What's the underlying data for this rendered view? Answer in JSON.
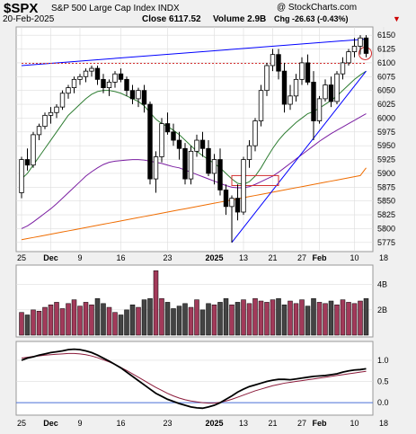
{
  "header": {
    "symbol": "$SPX",
    "name": "S&P 500 Large Cap Index  INDX",
    "watermark": "@ StockCharts.com",
    "date": "20-Feb-2025",
    "close": "Close 6117.52",
    "volume": "Volume 2.9B",
    "chg": "Chg -26.63 (-0.43%)",
    "chg_arrow": "▼",
    "chg_color": "#cc0000"
  },
  "price_axis": [
    "6150",
    "6125",
    "6100",
    "6075",
    "6050",
    "6025",
    "6000",
    "5975",
    "5950",
    "5925",
    "5900",
    "5875",
    "5850",
    "5825",
    "5800",
    "5775"
  ],
  "volume_axis": [
    "4B",
    "2B"
  ],
  "macd_axis": [
    "1.0",
    "0.5",
    "0.0"
  ],
  "x_axis": [
    "25",
    "Dec",
    "9",
    "16",
    "23",
    "2025",
    "13",
    "21",
    "27",
    "Feb",
    "10",
    "18"
  ],
  "colors": {
    "up_candle": "#ffffff",
    "down_candle": "#000000",
    "ma_short": "#2e7d32",
    "ma_mid": "#7b1fa2",
    "ma_long": "#ef6c00",
    "trendline": "#0000ff",
    "resistance": "#d32f2f",
    "volume_up": "#a23a5a",
    "volume_down": "#444444",
    "macd": "#000000",
    "macd_signal": "#8b1a3a"
  },
  "chart_data": {
    "type": "candlestick",
    "title": "$SPX S&P 500 Large Cap Index INDX",
    "ylim": [
      5765,
      6160
    ],
    "candles": [
      [
        5865,
        5930,
        5855,
        5925
      ],
      [
        5925,
        5945,
        5905,
        5915
      ],
      [
        5915,
        5975,
        5910,
        5970
      ],
      [
        5970,
        5990,
        5960,
        5985
      ],
      [
        5985,
        6010,
        5980,
        6005
      ],
      [
        6005,
        6020,
        5990,
        6010
      ],
      [
        6010,
        6025,
        6000,
        6020
      ],
      [
        6020,
        6050,
        6015,
        6045
      ],
      [
        6045,
        6060,
        6035,
        6055
      ],
      [
        6055,
        6075,
        6045,
        6070
      ],
      [
        6070,
        6080,
        6060,
        6075
      ],
      [
        6075,
        6090,
        6065,
        6085
      ],
      [
        6085,
        6095,
        6075,
        6090
      ],
      [
        6090,
        6095,
        6060,
        6070
      ],
      [
        6070,
        6080,
        6045,
        6055
      ],
      [
        6055,
        6070,
        6040,
        6065
      ],
      [
        6065,
        6085,
        6055,
        6080
      ],
      [
        6080,
        6090,
        6065,
        6070
      ],
      [
        6070,
        6075,
        6040,
        6050
      ],
      [
        6050,
        6060,
        6025,
        6035
      ],
      [
        6035,
        6055,
        6020,
        6050
      ],
      [
        6050,
        6060,
        6010,
        6025
      ],
      [
        6025,
        6030,
        5880,
        5890
      ],
      [
        5890,
        5940,
        5865,
        5930
      ],
      [
        5930,
        6000,
        5920,
        5990
      ],
      [
        5990,
        6010,
        5970,
        5975
      ],
      [
        5975,
        5990,
        5950,
        5960
      ],
      [
        5960,
        5975,
        5925,
        5945
      ],
      [
        5945,
        5955,
        5880,
        5890
      ],
      [
        5890,
        5950,
        5880,
        5940
      ],
      [
        5940,
        5970,
        5930,
        5960
      ],
      [
        5960,
        5975,
        5930,
        5945
      ],
      [
        5945,
        5960,
        5895,
        5900
      ],
      [
        5900,
        5935,
        5880,
        5925
      ],
      [
        5925,
        5945,
        5860,
        5870
      ],
      [
        5870,
        5880,
        5825,
        5840
      ],
      [
        5840,
        5860,
        5775,
        5855
      ],
      [
        5855,
        5880,
        5815,
        5830
      ],
      [
        5830,
        5930,
        5825,
        5925
      ],
      [
        5925,
        5960,
        5910,
        5950
      ],
      [
        5950,
        6000,
        5940,
        5995
      ],
      [
        5995,
        6060,
        5985,
        6050
      ],
      [
        6050,
        6100,
        6040,
        6095
      ],
      [
        6095,
        6125,
        6085,
        6115
      ],
      [
        6115,
        6125,
        6070,
        6085
      ],
      [
        6085,
        6100,
        6010,
        6025
      ],
      [
        6025,
        6060,
        6015,
        6040
      ],
      [
        6040,
        6080,
        6030,
        6070
      ],
      [
        6070,
        6110,
        6060,
        6100
      ],
      [
        6100,
        6115,
        6060,
        6065
      ],
      [
        6065,
        6085,
        5960,
        5995
      ],
      [
        5995,
        6040,
        5990,
        6035
      ],
      [
        6035,
        6070,
        6030,
        6060
      ],
      [
        6060,
        6075,
        6020,
        6030
      ],
      [
        6030,
        6085,
        6025,
        6080
      ],
      [
        6080,
        6110,
        6070,
        6100
      ],
      [
        6100,
        6125,
        6095,
        6120
      ],
      [
        6120,
        6145,
        6110,
        6130
      ],
      [
        6130,
        6150,
        6115,
        6145
      ],
      [
        6145,
        6150,
        6110,
        6117
      ]
    ],
    "volume": [
      1.8,
      1.6,
      2.0,
      1.9,
      2.2,
      2.4,
      2.6,
      2.1,
      2.5,
      2.8,
      2.3,
      2.6,
      2.4,
      2.9,
      2.5,
      2.2,
      1.8,
      1.6,
      2.0,
      2.4,
      2.2,
      2.8,
      2.9,
      5.1,
      2.9,
      2.6,
      2.1,
      2.3,
      2.5,
      2.2,
      2.8,
      2.0,
      2.5,
      2.4,
      2.6,
      2.9,
      2.4,
      2.6,
      2.8,
      2.5,
      2.9,
      2.7,
      2.6,
      2.8,
      2.9,
      2.4,
      2.7,
      2.5,
      2.8,
      2.3,
      2.9,
      2.6,
      2.5,
      2.7,
      2.4,
      2.8,
      2.6,
      2.5,
      2.7,
      2.9
    ],
    "macd": [
      1.0,
      1.05,
      1.08,
      1.12,
      1.15,
      1.18,
      1.2,
      1.22,
      1.25,
      1.26,
      1.25,
      1.22,
      1.18,
      1.12,
      1.05,
      0.98,
      0.9,
      0.82,
      0.72,
      0.62,
      0.52,
      0.42,
      0.32,
      0.22,
      0.15,
      0.08,
      0.03,
      -0.02,
      -0.06,
      -0.1,
      -0.12,
      -0.13,
      -0.1,
      -0.06,
      0.0,
      0.08,
      0.16,
      0.25,
      0.32,
      0.38,
      0.42,
      0.46,
      0.5,
      0.53,
      0.55,
      0.55,
      0.54,
      0.56,
      0.58,
      0.6,
      0.62,
      0.63,
      0.64,
      0.66,
      0.68,
      0.72,
      0.75,
      0.77,
      0.78,
      0.8
    ],
    "signal": [
      1.05,
      1.07,
      1.09,
      1.1,
      1.12,
      1.13,
      1.14,
      1.15,
      1.16,
      1.16,
      1.15,
      1.13,
      1.1,
      1.06,
      1.01,
      0.96,
      0.9,
      0.83,
      0.76,
      0.68,
      0.6,
      0.52,
      0.44,
      0.36,
      0.29,
      0.22,
      0.16,
      0.11,
      0.07,
      0.04,
      0.02,
      0.0,
      -0.01,
      -0.01,
      0.01,
      0.04,
      0.08,
      0.13,
      0.18,
      0.23,
      0.28,
      0.32,
      0.36,
      0.4,
      0.43,
      0.46,
      0.48,
      0.5,
      0.52,
      0.54,
      0.56,
      0.58,
      0.6,
      0.62,
      0.64,
      0.66,
      0.68,
      0.7,
      0.72,
      0.74
    ],
    "ma_short": [
      5890,
      5900,
      5915,
      5930,
      5945,
      5960,
      5975,
      5990,
      6005,
      6015,
      6025,
      6035,
      6043,
      6048,
      6050,
      6050,
      6048,
      6045,
      6040,
      6035,
      6030,
      6022,
      6010,
      5998,
      5990,
      5985,
      5978,
      5970,
      5960,
      5950,
      5940,
      5932,
      5925,
      5918,
      5910,
      5900,
      5890,
      5882,
      5880,
      5885,
      5895,
      5910,
      5928,
      5945,
      5960,
      5972,
      5982,
      5992,
      6000,
      6008,
      6012,
      6018,
      6025,
      6032,
      6040,
      6050,
      6060,
      6070,
      6078,
      6085
    ],
    "ma_mid": [
      5800,
      5805,
      5812,
      5820,
      5828,
      5836,
      5845,
      5855,
      5865,
      5875,
      5885,
      5895,
      5903,
      5910,
      5916,
      5920,
      5922,
      5923,
      5924,
      5925,
      5925,
      5924,
      5922,
      5920,
      5918,
      5915,
      5912,
      5910,
      5906,
      5902,
      5898,
      5894,
      5890,
      5886,
      5882,
      5878,
      5875,
      5874,
      5874,
      5876,
      5880,
      5885,
      5890,
      5895,
      5902,
      5910,
      5918,
      5926,
      5934,
      5942,
      5950,
      5958,
      5965,
      5972,
      5978,
      5984,
      5990,
      5996,
      6002,
      6008
    ],
    "ma_long": [
      5780,
      5782,
      5784,
      5786,
      5788,
      5790,
      5792,
      5794,
      5796,
      5798,
      5800,
      5802,
      5804,
      5806,
      5808,
      5810,
      5812,
      5814,
      5816,
      5818,
      5820,
      5822,
      5824,
      5826,
      5828,
      5830,
      5832,
      5834,
      5836,
      5838,
      5840,
      5842,
      5844,
      5846,
      5848,
      5850,
      5852,
      5854,
      5856,
      5858,
      5860,
      5862,
      5864,
      5866,
      5868,
      5870,
      5872,
      5874,
      5876,
      5878,
      5880,
      5882,
      5884,
      5886,
      5888,
      5890,
      5892,
      5894,
      5896,
      5910
    ],
    "trendline_top": [
      [
        0,
        6095
      ],
      [
        59,
        6143
      ]
    ],
    "trendline_low": [
      [
        36,
        5775
      ],
      [
        59,
        6085
      ]
    ],
    "resistance": [
      [
        0,
        6099
      ],
      [
        59,
        6099
      ]
    ],
    "resistance_box": [
      [
        36,
        5896
      ],
      [
        44,
        5878
      ]
    ]
  }
}
